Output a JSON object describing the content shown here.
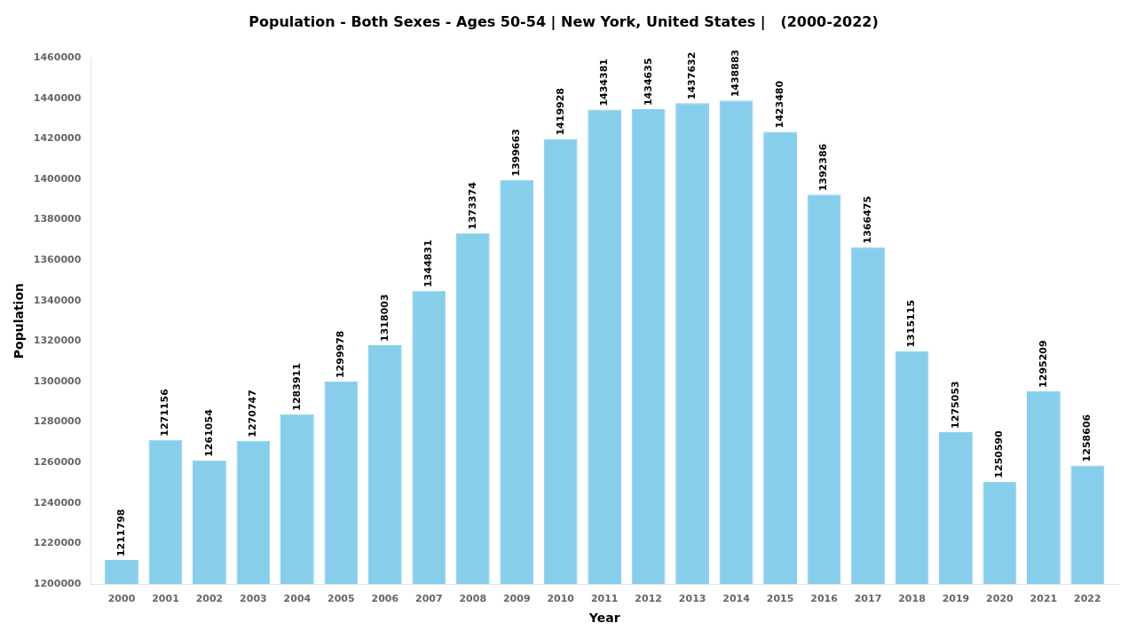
{
  "chart_data": {
    "type": "bar",
    "title": "Population - Both Sexes - Ages 50-54 | New York, United States |   (2000-2022)",
    "xlabel": "Year",
    "ylabel": "Population",
    "x": [
      2000,
      2001,
      2002,
      2003,
      2004,
      2005,
      2006,
      2007,
      2008,
      2009,
      2010,
      2011,
      2012,
      2013,
      2014,
      2015,
      2016,
      2017,
      2018,
      2019,
      2020,
      2021,
      2022
    ],
    "values": [
      1211798,
      1271156,
      1261054,
      1270747,
      1283911,
      1299978,
      1318003,
      1344831,
      1373374,
      1399663,
      1419928,
      1434381,
      1434635,
      1437632,
      1438883,
      1423480,
      1392386,
      1366475,
      1315115,
      1275053,
      1250590,
      1295209,
      1258606
    ],
    "color": "#87CEEB",
    "xlim": [
      1999.3,
      2022.7
    ],
    "xticks": [
      2000,
      2001,
      2002,
      2003,
      2004,
      2005,
      2006,
      2007,
      2008,
      2009,
      2010,
      2011,
      2012,
      2013,
      2014,
      2015,
      2016,
      2017,
      2018,
      2019,
      2020,
      2021,
      2022
    ],
    "ylim": [
      1200000,
      1460000
    ],
    "yticks": [
      1200000,
      1220000,
      1240000,
      1260000,
      1280000,
      1300000,
      1320000,
      1340000,
      1360000,
      1380000,
      1400000,
      1420000,
      1440000,
      1460000
    ],
    "grid": false,
    "data_labels": true
  }
}
